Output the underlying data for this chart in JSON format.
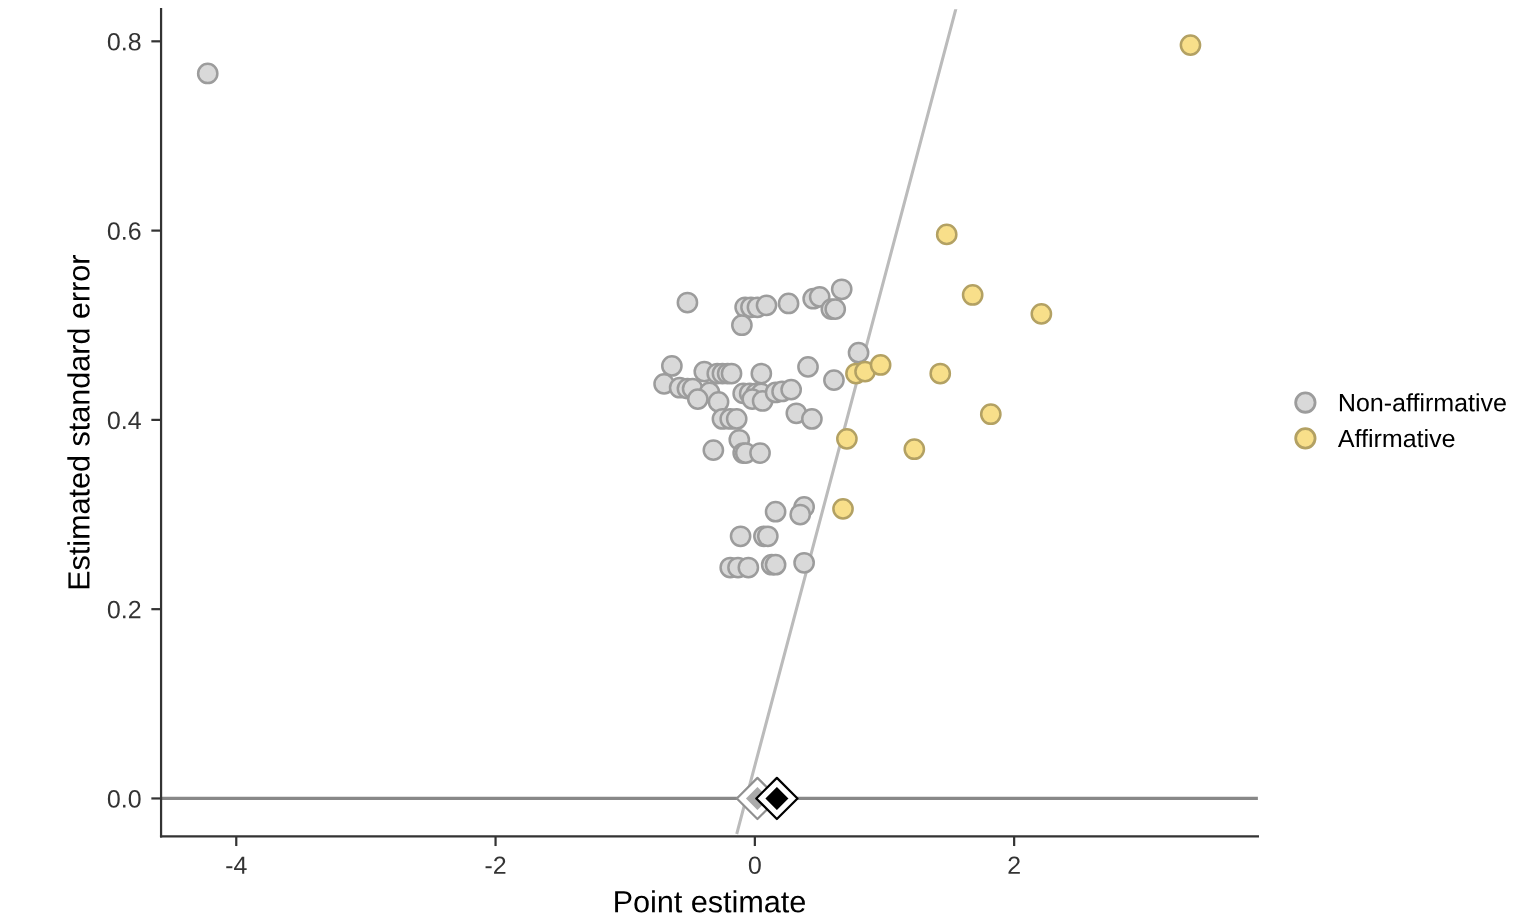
{
  "chart_data": {
    "type": "scatter",
    "xlabel": "Point estimate",
    "ylabel": "Estimated standard error",
    "xlim": [
      -4.58,
      3.88
    ],
    "ylim": [
      -0.04,
      0.834
    ],
    "xticks": [
      -4,
      -2,
      0,
      2
    ],
    "yticks": [
      {
        "value": 0,
        "label": "0.0"
      },
      {
        "value": 0.2,
        "label": "0.2"
      },
      {
        "value": 0.4,
        "label": "0.4"
      },
      {
        "value": 0.6,
        "label": "0.6"
      },
      {
        "value": 0.8,
        "label": "0.8"
      }
    ],
    "grid": false,
    "legend": "right",
    "marker": "circle",
    "ref_lines": [
      {
        "axis": "y",
        "value": 0,
        "color": "#888888"
      }
    ],
    "series": [
      {
        "type": "line",
        "marker": "none",
        "color": "#bbbbbb",
        "x": [
          -0.137,
          1.55
        ],
        "values": [
          -0.036,
          0.834
        ]
      },
      {
        "name": "Non-affirmative",
        "color": "#d9d9d9",
        "x": [
          -4.22,
          -0.52,
          -0.075,
          -0.03,
          0.02,
          0.09,
          0.26,
          0.45,
          0.5,
          0.67,
          0.59,
          0.62,
          -0.1,
          0.8,
          -0.64,
          0.41,
          0.05,
          -0.39,
          -0.29,
          -0.25,
          -0.21,
          -0.18,
          0.61,
          -0.7,
          -0.58,
          -0.52,
          -0.48,
          -0.35,
          -0.44,
          -0.28,
          -0.09,
          -0.04,
          0.01,
          0.05,
          -0.02,
          0.06,
          0.16,
          0.21,
          0.28,
          0.32,
          0.44,
          -0.25,
          -0.19,
          -0.14,
          -0.12,
          -0.32,
          -0.09,
          -0.07,
          0.04,
          0.16,
          0.38,
          0.35,
          -0.11,
          0.07,
          0.1,
          -0.19,
          -0.13,
          -0.05,
          0.13,
          0.16,
          0.38
        ],
        "values": [
          0.766,
          0.524,
          0.519,
          0.519,
          0.519,
          0.521,
          0.523,
          0.528,
          0.53,
          0.538,
          0.517,
          0.517,
          0.5,
          0.471,
          0.457,
          0.456,
          0.449,
          0.451,
          0.449,
          0.449,
          0.449,
          0.449,
          0.442,
          0.438,
          0.434,
          0.433,
          0.433,
          0.429,
          0.422,
          0.419,
          0.428,
          0.428,
          0.428,
          0.428,
          0.422,
          0.42,
          0.429,
          0.43,
          0.432,
          0.407,
          0.401,
          0.401,
          0.401,
          0.401,
          0.379,
          0.368,
          0.365,
          0.365,
          0.365,
          0.303,
          0.308,
          0.3,
          0.277,
          0.277,
          0.277,
          0.244,
          0.244,
          0.244,
          0.247,
          0.247,
          0.249
        ]
      },
      {
        "name": "Affirmative",
        "color": "#f8df8a",
        "x": [
          3.36,
          1.48,
          1.68,
          2.21,
          0.78,
          0.85,
          0.97,
          1.43,
          1.82,
          0.71,
          1.23,
          0.68
        ],
        "values": [
          0.796,
          0.596,
          0.532,
          0.512,
          0.449,
          0.451,
          0.458,
          0.449,
          0.406,
          0.38,
          0.369,
          0.306
        ]
      },
      {
        "marker": "diamond",
        "color": "#aaaaaa",
        "x": [
          0.02
        ],
        "values": [
          0
        ]
      },
      {
        "marker": "diamond",
        "color": "#000000",
        "x": [
          0.17
        ],
        "values": [
          0
        ]
      }
    ]
  }
}
